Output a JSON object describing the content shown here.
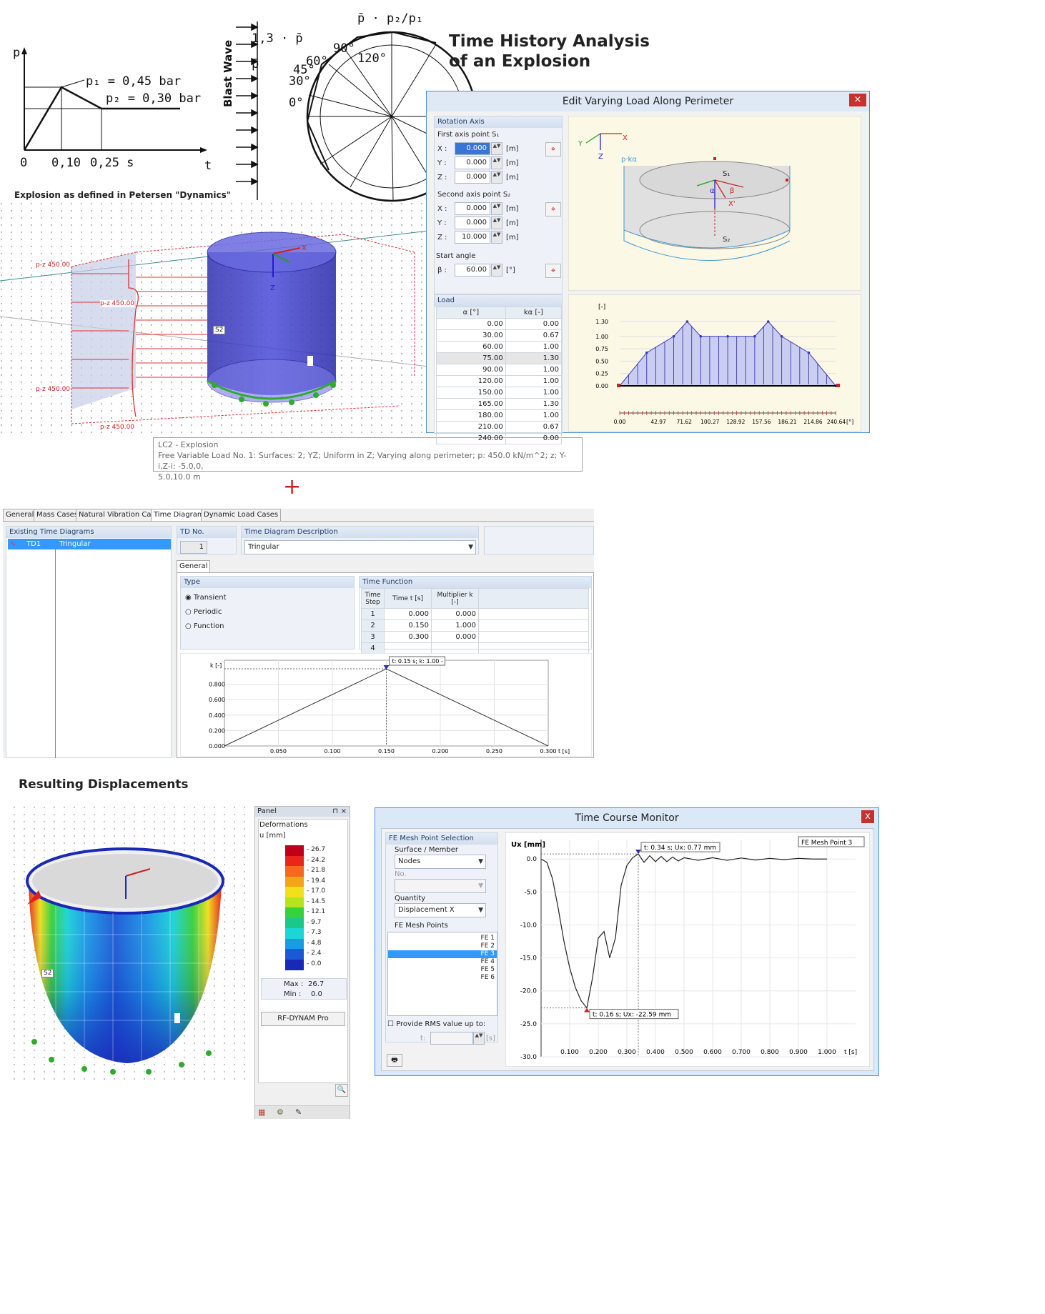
{
  "title": [
    "Time History Analysis",
    "of an Explosion"
  ],
  "sketch": {
    "p_axis": "p",
    "t_axis": "t",
    "p1": "p₁ = 0,45 bar",
    "p2": "p₂ = 0,30 bar",
    "t_ticks": [
      "0",
      "0,10",
      "0,25 s"
    ],
    "blast_wave": "Blast Wave",
    "coef": "1,3 · p̄",
    "pbar": "p̄",
    "ratio": "p̄ · p₂/p₁",
    "angles": [
      "90°",
      "120°",
      "60°",
      "45°",
      "30°",
      "0°"
    ],
    "caption": "Explosion as defined in Petersen \"Dynamics\""
  },
  "model_labels": {
    "loads": [
      "p-z 450.00",
      "p-z 450.00",
      "p-z 450.00",
      "p-z 450.00"
    ],
    "surface": "S2",
    "axis_x": "X",
    "axis_z": "Z"
  },
  "tooltip": {
    "line1": "LC2 - Explosion",
    "line2": "Free Variable Load No. 1: Surfaces: 2; YZ; Uniform in Z; Varying along perimeter; p: 450.0 kN/m^2; z; Y-i,Z-i: -5.0,0,",
    "line3": "5.0,10.0 m"
  },
  "plus": "+",
  "edit_dialog": {
    "title": "Edit Varying Load Along Perimeter",
    "close": "×",
    "rotation_axis": "Rotation Axis",
    "first_point": "First axis point S₁",
    "second_point": "Second axis point S₂",
    "start_angle": "Start angle",
    "axes": [
      "X :",
      "Y :",
      "Z :"
    ],
    "unit_m": "[m]",
    "unit_deg": "[°]",
    "beta_label": "β :",
    "first_values": [
      "0.000",
      "0.000",
      "0.000"
    ],
    "second_values": [
      "0.000",
      "0.000",
      "10.000"
    ],
    "beta": "60.00",
    "load": "Load",
    "col_alpha": "α [°]",
    "col_k": "kα [-]",
    "rows": [
      [
        "0.00",
        "0.00"
      ],
      [
        "30.00",
        "0.67"
      ],
      [
        "60.00",
        "1.00"
      ],
      [
        "75.00",
        "1.30"
      ],
      [
        "90.00",
        "1.00"
      ],
      [
        "120.00",
        "1.00"
      ],
      [
        "150.00",
        "1.00"
      ],
      [
        "165.00",
        "1.30"
      ],
      [
        "180.00",
        "1.00"
      ],
      [
        "210.00",
        "0.67"
      ],
      [
        "240.00",
        "0.00"
      ]
    ],
    "preview_labels": {
      "x": "X",
      "y": "Y",
      "z": "Z",
      "pk": "p·kα",
      "s1": "S₁",
      "s2": "S₂",
      "alpha": "α",
      "beta": "β",
      "xp": "X'"
    },
    "chart_unit": "[-]",
    "chart_unit_x": "[°]"
  },
  "time_editor": {
    "tabs": [
      "General",
      "Mass Cases",
      "Natural Vibration Cases",
      "Time Diagrams",
      "Dynamic Load Cases"
    ],
    "active_tab": "Time Diagrams",
    "existing_header": "Existing Time Diagrams",
    "list_id": "TD1",
    "list_name": "Tringular",
    "td_no_label": "TD No.",
    "td_no": "1",
    "desc_label": "Time Diagram Description",
    "desc_value": "Tringular",
    "subtab": "General",
    "type_label": "Type",
    "types": [
      "Transient",
      "Periodic",
      "Function"
    ],
    "selected_type": "Transient",
    "tf_label": "Time Function",
    "col_step": "Time Step",
    "col_time": "Time t [s]",
    "col_mult": "Multiplier k [-]",
    "rows": [
      [
        "1",
        "0.000",
        "0.000"
      ],
      [
        "2",
        "0.150",
        "1.000"
      ],
      [
        "3",
        "0.300",
        "0.000"
      ],
      [
        "4",
        "",
        ""
      ]
    ],
    "chart_ylabel": "k [-]",
    "chart_xlabel": "t [s]",
    "chart_tip": "t: 0.15 s; k: 1.00 -"
  },
  "results_heading": "Resulting Displacements",
  "panel": {
    "title": "Panel",
    "pin": "⊓",
    "close": "×",
    "deform_label": "Deformations",
    "unit": "u [mm]",
    "values": [
      "26.7",
      "24.2",
      "21.8",
      "19.4",
      "17.0",
      "14.5",
      "12.1",
      "9.7",
      "7.3",
      "4.8",
      "2.4",
      "0.0"
    ],
    "colors": [
      "#c0001a",
      "#e8261a",
      "#f46a1a",
      "#f6a31a",
      "#f2e01a",
      "#b7e31a",
      "#35d23a",
      "#1ac98a",
      "#1ad6d6",
      "#1a9be6",
      "#1a5ad6",
      "#1a28b8"
    ],
    "max_label": "Max :",
    "max_value": "26.7",
    "min_label": "Min :",
    "min_value": "0.0",
    "button": "RF-DYNAM Pro"
  },
  "result_model": {
    "surface": "S2"
  },
  "monitor": {
    "title": "Time Course Monitor",
    "close": "x",
    "group": "FE Mesh Point Selection",
    "surface_label": "Surface / Member",
    "surface_value": "Nodes",
    "no_label": "No.",
    "quantity_label": "Quantity",
    "quantity_value": "Displacement X",
    "points_label": "FE Mesh Points",
    "points": [
      "FE 1",
      "FE 2",
      "FE 3",
      "FE 4",
      "FE 5",
      "FE 6"
    ],
    "selected_point": "FE 3",
    "rms_label": "Provide RMS value up to:",
    "t_label": "t:",
    "t_unit": "[s]",
    "chart_ylabel": "Ux [mm]",
    "chart_xlabel": "t [s]",
    "legend": "FE Mesh Point 3",
    "max_tip": "t: 0.34 s; Ux: 0.77 mm",
    "min_tip": "t: 0.16 s; Ux: -22.59 mm"
  },
  "chart_data": [
    {
      "type": "line",
      "title": "",
      "x": [
        0.0,
        30.0,
        60.0,
        75.0,
        90.0,
        120.0,
        150.0,
        165.0,
        180.0,
        210.0,
        240.0
      ],
      "y": [
        0.0,
        0.67,
        1.0,
        1.3,
        1.0,
        1.0,
        1.0,
        1.3,
        1.0,
        0.67,
        0.0
      ],
      "xlabel": "[°]",
      "ylabel": "[-]",
      "xlim": [
        0,
        240.64
      ],
      "ylim": [
        0,
        1.3
      ],
      "yticks": [
        "0.00",
        "0.25",
        "0.50",
        "0.75",
        "1.00",
        "1.30"
      ],
      "xticks": [
        "0.00",
        "42.97",
        "71.62",
        "100.27",
        "128.92",
        "157.56",
        "186.21",
        "214.86",
        "240.64"
      ]
    },
    {
      "type": "line",
      "title": "",
      "x": [
        0.0,
        0.15,
        0.3
      ],
      "y": [
        0.0,
        1.0,
        0.0
      ],
      "xlabel": "t [s]",
      "ylabel": "k [-]",
      "xlim": [
        0,
        0.3
      ],
      "ylim": [
        0,
        1.0
      ],
      "yticks": [
        "0.000",
        "0.200",
        "0.400",
        "0.600",
        "0.800"
      ],
      "xticks": [
        "0.050",
        "0.100",
        "0.150",
        "0.200",
        "0.250",
        "0.300"
      ]
    },
    {
      "type": "line",
      "title": "",
      "series": [
        {
          "name": "FE Mesh Point 3",
          "x": [
            0.0,
            0.02,
            0.04,
            0.06,
            0.08,
            0.1,
            0.12,
            0.14,
            0.16,
            0.18,
            0.2,
            0.22,
            0.24,
            0.26,
            0.28,
            0.3,
            0.32,
            0.34,
            0.36,
            0.38,
            0.4,
            0.42,
            0.44,
            0.46,
            0.48,
            0.5,
            0.55,
            0.6,
            0.65,
            0.7,
            0.75,
            0.8,
            0.85,
            0.9,
            0.95,
            1.0
          ],
          "y": [
            0.0,
            -0.5,
            -3.0,
            -7.5,
            -12.5,
            -16.5,
            -19.5,
            -21.5,
            -22.59,
            -18.0,
            -12.0,
            -11.0,
            -15.0,
            -12.0,
            -4.0,
            -1.0,
            0.2,
            0.77,
            -0.5,
            0.5,
            -0.4,
            0.4,
            -0.4,
            0.3,
            -0.3,
            0.2,
            -0.2,
            0.2,
            -0.2,
            0.15,
            -0.15,
            0.1,
            -0.1,
            0.1,
            0.0,
            0.0
          ]
        }
      ],
      "xlabel": "t [s]",
      "ylabel": "Ux [mm]",
      "xlim": [
        0,
        1.05
      ],
      "ylim": [
        -30,
        1
      ],
      "yticks": [
        "0.0",
        "-5.0",
        "-10.0",
        "-15.0",
        "-20.0",
        "-25.0",
        "-30.0"
      ],
      "xticks": [
        "0.100",
        "0.200",
        "0.300",
        "0.400",
        "0.500",
        "0.600",
        "0.700",
        "0.800",
        "0.900",
        "1.000"
      ]
    }
  ]
}
